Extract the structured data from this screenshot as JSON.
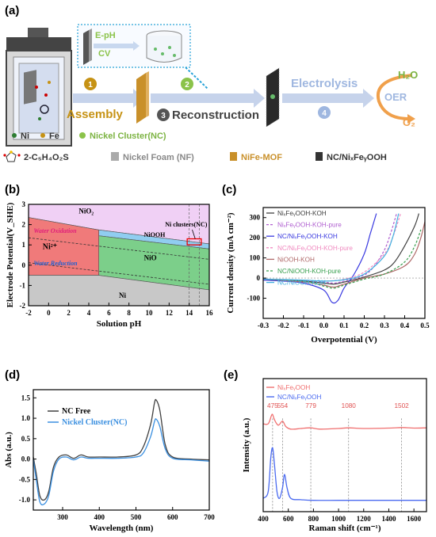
{
  "panel_labels": [
    "(a)",
    "(b)",
    "(c)",
    "(d)",
    "(e)"
  ],
  "schematic": {
    "inset_step1": "E-pH",
    "inset_step2": "CV",
    "step_numbers": [
      "1",
      "2",
      "3",
      "4"
    ],
    "assembly": "Assembly",
    "reconstruction": "Reconstruction",
    "electrolysis": "Electrolysis",
    "oer": "OER",
    "h2o": "H₂O",
    "o2": "O₂",
    "legend_ni": "Ni",
    "legend_fe": "Fe",
    "legend_nc": "Nickel Cluster(NC)",
    "legend_ligand": "2-C₅H₄O₂S",
    "legend_nf": "Nickel Foam (NF)",
    "legend_mof": "NiFe-MOF",
    "legend_product": "NC/NiₓFeᵧOOH",
    "colors": {
      "ni_dot": "#2e7d32",
      "fe_dot": "#c69214",
      "arrow": "#b8c8e6",
      "mof": "#c9902a",
      "mesh": "#333333",
      "oer_arrow": "#f0a04b",
      "step_badge": "#c69214"
    }
  },
  "chart_data": [
    {
      "id": "b",
      "type": "area",
      "title": "",
      "xlabel": "Solution pH",
      "ylabel": "Electrode Potential(V_SHE)",
      "xlim": [
        -2,
        16
      ],
      "ylim": [
        -2,
        3
      ],
      "xticks": [
        -2,
        0,
        2,
        4,
        6,
        8,
        10,
        12,
        14,
        16
      ],
      "yticks": [
        -2,
        -1,
        0,
        1,
        2,
        3
      ],
      "regions": [
        {
          "name": "NiO₂",
          "color": "#f0d0f5",
          "points": [
            [
              -2,
              3
            ],
            [
              16,
              3
            ],
            [
              16,
              1.05
            ],
            [
              5,
              1.74
            ],
            [
              -2,
              2.35
            ]
          ]
        },
        {
          "name": "Ni²⁺",
          "color": "#f07a7a",
          "points": [
            [
              -2,
              2.35
            ],
            [
              5,
              1.74
            ],
            [
              5,
              -0.5
            ],
            [
              -2,
              -0.5
            ]
          ]
        },
        {
          "name": "NiOOH",
          "color": "#90cdf0",
          "points": [
            [
              5,
              1.74
            ],
            [
              16,
              1.05
            ],
            [
              16,
              0.8
            ],
            [
              5,
              1.45
            ]
          ]
        },
        {
          "name": "NiO",
          "color": "#7ccf8a",
          "points": [
            [
              5,
              1.45
            ],
            [
              16,
              0.8
            ],
            [
              16,
              -1.22
            ],
            [
              5,
              -0.5
            ]
          ]
        },
        {
          "name": "Ni",
          "color": "#c8c8c8",
          "points": [
            [
              -2,
              -0.5
            ],
            [
              5,
              -0.5
            ],
            [
              16,
              -1.22
            ],
            [
              16,
              -2
            ],
            [
              -2,
              -2
            ]
          ]
        }
      ],
      "lines": [
        {
          "name": "Water Oxidation",
          "points": [
            [
              -2,
              1.35
            ],
            [
              16,
              0.29
            ]
          ],
          "style": "dashed"
        },
        {
          "name": "Water Reduction",
          "points": [
            [
              -2,
              0.12
            ],
            [
              16,
              -0.94
            ]
          ],
          "style": "dashed"
        }
      ],
      "annotations": [
        {
          "text": "NiO₂",
          "x": 3,
          "y": 2.55
        },
        {
          "text": "Ni²⁺",
          "x": -0.6,
          "y": 0.8
        },
        {
          "text": "NiOOH",
          "x": 9.5,
          "y": 1.4
        },
        {
          "text": "NiO",
          "x": 9.5,
          "y": 0.25
        },
        {
          "text": "Ni",
          "x": 7,
          "y": -1.6
        },
        {
          "text": "Water Oxidation",
          "x": -1.5,
          "y": 1.6
        },
        {
          "text": "Water Reduction",
          "x": -1.5,
          "y": 0.0
        },
        {
          "text": "Ni clusters(NC)",
          "x": 11.6,
          "y": 1.9
        }
      ],
      "highlight_box": {
        "x0": 13.8,
        "x1": 15.2,
        "y0": 1.0,
        "y1": 1.3
      },
      "vlines": [
        14,
        15
      ]
    },
    {
      "id": "c",
      "type": "line",
      "title": "",
      "xlabel": "Overpotential (V)",
      "ylabel": "Current density (mA cm⁻²)",
      "xlim": [
        -0.3,
        0.5
      ],
      "ylim": [
        -200,
        350
      ],
      "xticks": [
        -0.3,
        -0.2,
        -0.1,
        0.0,
        0.1,
        0.2,
        0.3,
        0.4,
        0.5
      ],
      "xticklabels": [
        "-0.3",
        "-0.2",
        "-0.1",
        "0.0",
        "0.1",
        "0.2",
        "0.3",
        "0.4",
        "0.5"
      ],
      "yticks": [
        -100,
        0,
        100,
        200,
        300
      ],
      "legend_position": "top-left",
      "series": [
        {
          "name": "NiₓFeᵧOOH-KOH",
          "color": "#404040",
          "dash": "",
          "points": [
            [
              -0.3,
              -5
            ],
            [
              -0.1,
              -15
            ],
            [
              0.0,
              -25
            ],
            [
              0.05,
              -30
            ],
            [
              0.1,
              -20
            ],
            [
              0.2,
              5
            ],
            [
              0.3,
              40
            ],
            [
              0.35,
              80
            ],
            [
              0.4,
              160
            ],
            [
              0.45,
              260
            ],
            [
              0.47,
              320
            ]
          ]
        },
        {
          "name": "NiₓFeᵧOOH-KOH-pure",
          "color": "#b05fd0",
          "dash": "3,2",
          "points": [
            [
              -0.3,
              -5
            ],
            [
              -0.1,
              -12
            ],
            [
              0.0,
              -20
            ],
            [
              0.05,
              -25
            ],
            [
              0.1,
              -15
            ],
            [
              0.2,
              15
            ],
            [
              0.25,
              60
            ],
            [
              0.3,
              140
            ],
            [
              0.33,
              220
            ],
            [
              0.36,
              320
            ]
          ]
        },
        {
          "name": "NC/NiₓFeᵧOOH-KOH",
          "color": "#3a3ae0",
          "dash": "",
          "points": [
            [
              -0.3,
              -10
            ],
            [
              -0.2,
              -15
            ],
            [
              -0.1,
              -25
            ],
            [
              0.0,
              -60
            ],
            [
              0.04,
              -120
            ],
            [
              0.07,
              -110
            ],
            [
              0.1,
              -50
            ],
            [
              0.15,
              20
            ],
            [
              0.2,
              120
            ],
            [
              0.23,
              220
            ],
            [
              0.26,
              320
            ]
          ]
        },
        {
          "name": "NC/NiₓFeᵧOOH-KOH-pure",
          "color": "#f08ac0",
          "dash": "3,2",
          "points": [
            [
              -0.3,
              -5
            ],
            [
              -0.1,
              -10
            ],
            [
              0.0,
              -15
            ],
            [
              0.1,
              -5
            ],
            [
              0.2,
              30
            ],
            [
              0.3,
              120
            ],
            [
              0.34,
              200
            ],
            [
              0.38,
              320
            ]
          ]
        },
        {
          "name": "NiOOH-KOH",
          "color": "#b06a6a",
          "dash": "",
          "points": [
            [
              -0.3,
              -5
            ],
            [
              -0.1,
              -20
            ],
            [
              0.0,
              -35
            ],
            [
              0.05,
              -45
            ],
            [
              0.1,
              -30
            ],
            [
              0.2,
              0
            ],
            [
              0.3,
              20
            ],
            [
              0.4,
              60
            ],
            [
              0.45,
              120
            ],
            [
              0.48,
              200
            ],
            [
              0.5,
              280
            ]
          ]
        },
        {
          "name": "NC/NiOOH-KOH-pure",
          "color": "#3aa050",
          "dash": "3,2",
          "points": [
            [
              -0.3,
              -5
            ],
            [
              -0.1,
              -15
            ],
            [
              0.0,
              -40
            ],
            [
              0.05,
              -50
            ],
            [
              0.1,
              -35
            ],
            [
              0.2,
              -5
            ],
            [
              0.3,
              20
            ],
            [
              0.4,
              80
            ],
            [
              0.45,
              160
            ],
            [
              0.48,
              240
            ]
          ]
        },
        {
          "name": "NC/NiOOH-KOH",
          "color": "#40b0e0",
          "dash": "",
          "points": [
            [
              -0.3,
              -5
            ],
            [
              -0.1,
              -10
            ],
            [
              0.0,
              -15
            ],
            [
              0.1,
              -8
            ],
            [
              0.2,
              20
            ],
            [
              0.3,
              110
            ],
            [
              0.34,
              200
            ],
            [
              0.37,
              320
            ]
          ]
        }
      ]
    },
    {
      "id": "d",
      "type": "line",
      "title": "",
      "xlabel": "Wavelength (nm)",
      "ylabel": "Abs (a.u.)",
      "xlim": [
        220,
        700
      ],
      "ylim": [
        -1.25,
        1.7
      ],
      "xticks": [
        300,
        400,
        500,
        600,
        700
      ],
      "yticks": [
        -1.0,
        -0.5,
        0.0,
        0.5,
        1.0,
        1.5
      ],
      "yticklabels": [
        "-1.0",
        "-0.5",
        "0.0",
        "0.5",
        "1.0",
        "1.5"
      ],
      "legend_position": "top-left",
      "series": [
        {
          "name": "NC Free",
          "color": "#404040",
          "points": [
            [
              220,
              0.05
            ],
            [
              228,
              -0.35
            ],
            [
              238,
              -0.9
            ],
            [
              250,
              -1.0
            ],
            [
              262,
              -0.8
            ],
            [
              275,
              -0.2
            ],
            [
              290,
              0.05
            ],
            [
              310,
              0.1
            ],
            [
              330,
              0.02
            ],
            [
              350,
              0.1
            ],
            [
              370,
              0.05
            ],
            [
              400,
              0.05
            ],
            [
              450,
              0.05
            ],
            [
              500,
              0.1
            ],
            [
              520,
              0.3
            ],
            [
              540,
              0.85
            ],
            [
              550,
              1.35
            ],
            [
              555,
              1.45
            ],
            [
              565,
              1.2
            ],
            [
              580,
              0.35
            ],
            [
              600,
              0.05
            ],
            [
              650,
              0.0
            ],
            [
              700,
              -0.02
            ]
          ]
        },
        {
          "name": "Nickel Cluster(NC)",
          "color": "#3a8fe0",
          "points": [
            [
              220,
              0.0
            ],
            [
              228,
              -0.5
            ],
            [
              238,
              -1.05
            ],
            [
              250,
              -1.1
            ],
            [
              262,
              -0.9
            ],
            [
              275,
              -0.3
            ],
            [
              290,
              0.0
            ],
            [
              310,
              0.05
            ],
            [
              330,
              -0.02
            ],
            [
              350,
              0.05
            ],
            [
              370,
              0.02
            ],
            [
              400,
              0.02
            ],
            [
              450,
              0.02
            ],
            [
              500,
              0.05
            ],
            [
              520,
              0.15
            ],
            [
              540,
              0.55
            ],
            [
              550,
              0.9
            ],
            [
              555,
              0.98
            ],
            [
              565,
              0.8
            ],
            [
              580,
              0.25
            ],
            [
              600,
              0.02
            ],
            [
              650,
              -0.02
            ],
            [
              700,
              -0.05
            ]
          ]
        }
      ]
    },
    {
      "id": "e",
      "type": "line",
      "title": "",
      "xlabel": "Raman shift (cm⁻¹)",
      "ylabel": "Intensity (a.u.)",
      "xlim": [
        400,
        1700
      ],
      "xticks": [
        400,
        600,
        800,
        1000,
        1200,
        1400,
        1600
      ],
      "legend_position": "top-left",
      "series": [
        {
          "name": "NiₓFeᵧOOH",
          "color": "#f07070",
          "points": [
            [
              400,
              0.66
            ],
            [
              440,
              0.66
            ],
            [
              465,
              0.72
            ],
            [
              475,
              0.73
            ],
            [
              490,
              0.69
            ],
            [
              520,
              0.65
            ],
            [
              554,
              0.68
            ],
            [
              580,
              0.64
            ],
            [
              620,
              0.62
            ],
            [
              700,
              0.625
            ],
            [
              779,
              0.63
            ],
            [
              850,
              0.62
            ],
            [
              1000,
              0.625
            ],
            [
              1080,
              0.63
            ],
            [
              1200,
              0.625
            ],
            [
              1400,
              0.628
            ],
            [
              1502,
              0.632
            ],
            [
              1600,
              0.628
            ],
            [
              1700,
              0.63
            ]
          ]
        },
        {
          "name": "NC/NiₓFeᵧOOH",
          "color": "#4a6af0",
          "points": [
            [
              400,
              0.1
            ],
            [
              440,
              0.15
            ],
            [
              460,
              0.4
            ],
            [
              475,
              0.48
            ],
            [
              490,
              0.35
            ],
            [
              510,
              0.15
            ],
            [
              530,
              0.1
            ],
            [
              554,
              0.18
            ],
            [
              570,
              0.28
            ],
            [
              590,
              0.18
            ],
            [
              620,
              0.1
            ],
            [
              700,
              0.09
            ],
            [
              800,
              0.085
            ],
            [
              1000,
              0.085
            ],
            [
              1200,
              0.085
            ],
            [
              1400,
              0.085
            ],
            [
              1600,
              0.085
            ],
            [
              1700,
              0.085
            ]
          ]
        }
      ],
      "peak_labels": [
        {
          "text": "475",
          "x": 475
        },
        {
          "text": "554",
          "x": 554
        },
        {
          "text": "779",
          "x": 779
        },
        {
          "text": "1080",
          "x": 1080
        },
        {
          "text": "1502",
          "x": 1502
        }
      ]
    }
  ]
}
